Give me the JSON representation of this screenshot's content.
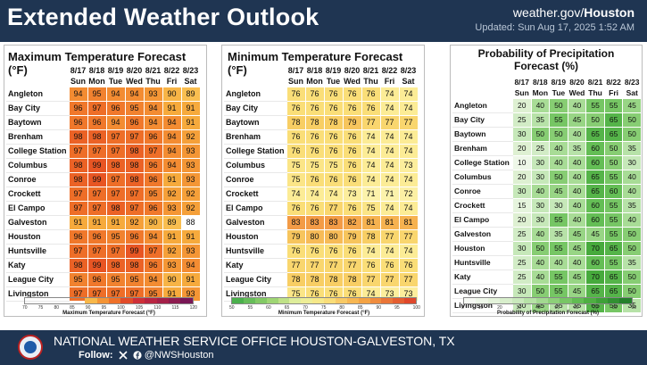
{
  "header": {
    "title": "Extended Weather Outlook",
    "site_prefix": "weather.gov/",
    "site_office": "Houston",
    "updated": "Updated: Sun Aug 17, 2025 1:52 AM"
  },
  "dates": [
    "8/17",
    "8/18",
    "8/19",
    "8/20",
    "8/21",
    "8/22",
    "8/23"
  ],
  "days": [
    "Sun",
    "Mon",
    "Tue",
    "Wed",
    "Thu",
    "Fri",
    "Sat"
  ],
  "cities": [
    "Angleton",
    "Bay City",
    "Baytown",
    "Brenham",
    "College Station",
    "Columbus",
    "Conroe",
    "Crockett",
    "El Campo",
    "Galveston",
    "Houston",
    "Huntsville",
    "Katy",
    "League City",
    "Livingston"
  ],
  "max_panel": {
    "title": "Maximum Temperature Forecast (°F)",
    "values": [
      [
        94,
        95,
        94,
        94,
        93,
        90,
        89
      ],
      [
        96,
        97,
        96,
        95,
        94,
        91,
        91
      ],
      [
        96,
        96,
        94,
        96,
        94,
        94,
        91
      ],
      [
        98,
        98,
        97,
        97,
        96,
        94,
        92
      ],
      [
        97,
        97,
        97,
        98,
        97,
        94,
        93
      ],
      [
        98,
        99,
        98,
        98,
        96,
        94,
        93
      ],
      [
        98,
        99,
        97,
        98,
        96,
        91,
        93
      ],
      [
        97,
        97,
        97,
        97,
        95,
        92,
        92
      ],
      [
        97,
        97,
        98,
        97,
        96,
        93,
        92
      ],
      [
        91,
        91,
        91,
        92,
        90,
        89,
        88
      ],
      [
        96,
        96,
        95,
        96,
        94,
        91,
        91
      ],
      [
        97,
        97,
        97,
        99,
        97,
        92,
        93
      ],
      [
        98,
        99,
        98,
        98,
        96,
        93,
        94
      ],
      [
        95,
        96,
        95,
        95,
        94,
        90,
        91
      ],
      [
        97,
        97,
        97,
        97,
        95,
        91,
        93
      ]
    ],
    "legend_ticks": [
      "70",
      "75",
      "80",
      "85",
      "90",
      "95",
      "100",
      "105",
      "110",
      "115",
      "120"
    ],
    "legend_caption": "Maximum Temperature Forecast (°F)"
  },
  "min_panel": {
    "title": "Minimum Temperature Forecast (°F)",
    "values": [
      [
        76,
        76,
        76,
        76,
        76,
        74,
        74
      ],
      [
        76,
        76,
        76,
        76,
        76,
        74,
        74
      ],
      [
        78,
        78,
        78,
        79,
        77,
        77,
        77
      ],
      [
        76,
        76,
        76,
        76,
        74,
        74,
        74
      ],
      [
        76,
        76,
        76,
        76,
        74,
        74,
        74
      ],
      [
        75,
        75,
        75,
        76,
        74,
        74,
        73
      ],
      [
        75,
        76,
        76,
        76,
        74,
        74,
        74
      ],
      [
        74,
        74,
        74,
        73,
        71,
        71,
        72
      ],
      [
        76,
        76,
        77,
        76,
        75,
        74,
        74
      ],
      [
        83,
        83,
        83,
        82,
        81,
        81,
        81
      ],
      [
        79,
        80,
        80,
        79,
        78,
        77,
        77
      ],
      [
        76,
        76,
        76,
        76,
        74,
        74,
        74
      ],
      [
        77,
        77,
        77,
        77,
        76,
        76,
        76
      ],
      [
        78,
        78,
        78,
        78,
        77,
        77,
        77
      ],
      [
        75,
        76,
        76,
        76,
        74,
        73,
        73
      ]
    ],
    "legend_ticks": [
      "50",
      "55",
      "60",
      "65",
      "70",
      "75",
      "80",
      "85",
      "90",
      "95",
      "100"
    ],
    "legend_caption": "Minimum Temperature Forecast (°F)"
  },
  "pop_panel": {
    "title": "Probability of Precipitation Forecast (%)",
    "values": [
      [
        20,
        40,
        50,
        40,
        55,
        55,
        45
      ],
      [
        25,
        35,
        55,
        45,
        50,
        65,
        50
      ],
      [
        30,
        50,
        50,
        40,
        65,
        65,
        50
      ],
      [
        20,
        25,
        40,
        35,
        60,
        50,
        35
      ],
      [
        10,
        30,
        40,
        40,
        60,
        50,
        30
      ],
      [
        20,
        30,
        50,
        40,
        65,
        55,
        40
      ],
      [
        30,
        40,
        45,
        40,
        65,
        60,
        40
      ],
      [
        15,
        30,
        30,
        40,
        60,
        55,
        35
      ],
      [
        20,
        30,
        55,
        40,
        60,
        55,
        40
      ],
      [
        25,
        40,
        35,
        45,
        45,
        55,
        50
      ],
      [
        30,
        50,
        55,
        45,
        70,
        65,
        50
      ],
      [
        25,
        40,
        40,
        40,
        60,
        55,
        35
      ],
      [
        25,
        40,
        55,
        45,
        70,
        65,
        50
      ],
      [
        30,
        50,
        55,
        45,
        65,
        65,
        50
      ],
      [
        30,
        45,
        35,
        35,
        65,
        55,
        35
      ]
    ],
    "legend_ticks": [
      "0",
      "10",
      "20",
      "30",
      "40",
      "50",
      "60",
      "70",
      "80",
      "90"
    ],
    "legend_caption": "Probability of Precipitation Forecast (%)"
  },
  "footer": {
    "office": "NATIONAL WEATHER SERVICE OFFICE HOUSTON-GALVESTON, TX",
    "follow_label": "Follow:",
    "handle": "@NWSHouston"
  },
  "icons": {
    "logo": "nws-logo",
    "x": "x-logo-icon",
    "facebook": "facebook-icon"
  }
}
